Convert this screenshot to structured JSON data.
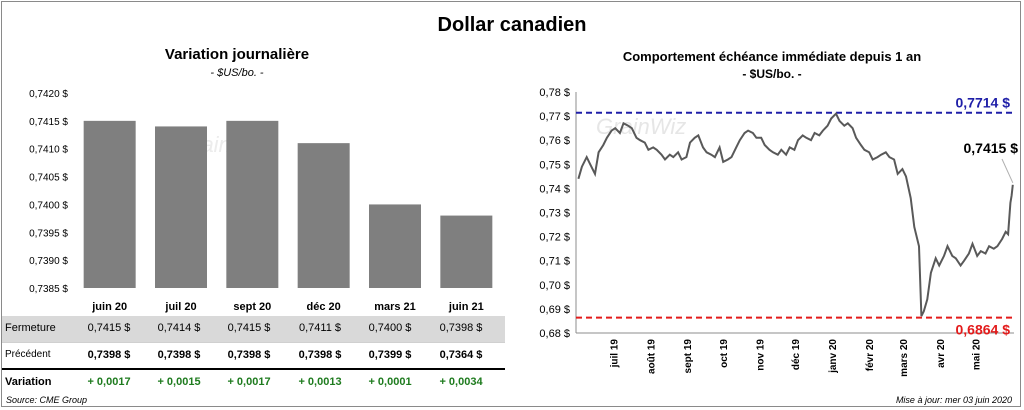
{
  "title": "Dollar canadien",
  "source": "Source: CME Group",
  "updated": "Mise à jour: mer 03 juin 2020",
  "watermark": "GrainWiz",
  "colors": {
    "bar": "#7f7f7f",
    "line": "#595959",
    "high": "#1f1fa8",
    "low": "#e31b1b",
    "variation": "#1e7b1e"
  },
  "table": {
    "rows": [
      {
        "label": "Fermeture",
        "values": [
          "0,7415  $",
          "0,7414  $",
          "0,7415  $",
          "0,7411  $",
          "0,7400  $",
          "0,7398  $"
        ]
      },
      {
        "label": "Précédent",
        "values": [
          "0,7398  $",
          "0,7398  $",
          "0,7398  $",
          "0,7398  $",
          "0,7399  $",
          "0,7364  $"
        ]
      },
      {
        "label": "Variation",
        "values": [
          "+ 0,0017",
          "+ 0,0015",
          "+ 0,0017",
          "+ 0,0013",
          "+ 0,0001",
          "+ 0,0034"
        ]
      }
    ]
  },
  "chart_data": [
    {
      "type": "bar",
      "title": "Variation  journalière",
      "subtitle": "- $US/bo. -",
      "categories": [
        "juin 20",
        "juil 20",
        "sept 20",
        "déc 20",
        "mars 21",
        "juin 21"
      ],
      "values": [
        0.7415,
        0.7414,
        0.7415,
        0.7411,
        0.74,
        0.7398
      ],
      "ylim": [
        0.7385,
        0.742
      ],
      "yticks": [
        "0,7385 $",
        "0,7390 $",
        "0,7395 $",
        "0,7400 $",
        "0,7405 $",
        "0,7410 $",
        "0,7415 $",
        "0,7420 $"
      ],
      "grid": false
    },
    {
      "type": "line",
      "title": "Comportement échéance immédiate depuis 1 an",
      "subtitle": "- $US/bo. -",
      "ylim": [
        0.68,
        0.78
      ],
      "yticks": [
        "0,68 $",
        "0,69 $",
        "0,70 $",
        "0,71 $",
        "0,72 $",
        "0,73 $",
        "0,74 $",
        "0,75 $",
        "0,76 $",
        "0,77 $",
        "0,78 $"
      ],
      "xticks": [
        "juil 19",
        "août 19",
        "sept 19",
        "oct 19",
        "nov 19",
        "déc 19",
        "janv 20",
        "févr 20",
        "mars 20",
        "avr 20",
        "mai 20"
      ],
      "high": {
        "value": 0.7714,
        "label": "0,7714  $"
      },
      "low": {
        "value": 0.6864,
        "label": "0,6864  $"
      },
      "last": {
        "value": 0.7415,
        "label": "0,7415 $"
      },
      "series": [
        {
          "points": [
            [
              "2019-06-03",
              0.744
            ],
            [
              "2019-06-06",
              0.749
            ],
            [
              "2019-06-10",
              0.753
            ],
            [
              "2019-06-13",
              0.75
            ],
            [
              "2019-06-17",
              0.746
            ],
            [
              "2019-06-20",
              0.755
            ],
            [
              "2019-06-24",
              0.758
            ],
            [
              "2019-06-27",
              0.761
            ],
            [
              "2019-07-01",
              0.764
            ],
            [
              "2019-07-04",
              0.765
            ],
            [
              "2019-07-08",
              0.763
            ],
            [
              "2019-07-11",
              0.767
            ],
            [
              "2019-07-15",
              0.766
            ],
            [
              "2019-07-18",
              0.765
            ],
            [
              "2019-07-22",
              0.761
            ],
            [
              "2019-07-25",
              0.76
            ],
            [
              "2019-07-29",
              0.759
            ],
            [
              "2019-08-01",
              0.756
            ],
            [
              "2019-08-05",
              0.757
            ],
            [
              "2019-08-08",
              0.756
            ],
            [
              "2019-08-12",
              0.754
            ],
            [
              "2019-08-15",
              0.752
            ],
            [
              "2019-08-19",
              0.754
            ],
            [
              "2019-08-22",
              0.753
            ],
            [
              "2019-08-26",
              0.755
            ],
            [
              "2019-08-29",
              0.752
            ],
            [
              "2019-09-02",
              0.753
            ],
            [
              "2019-09-05",
              0.759
            ],
            [
              "2019-09-09",
              0.761
            ],
            [
              "2019-09-12",
              0.762
            ],
            [
              "2019-09-16",
              0.757
            ],
            [
              "2019-09-19",
              0.755
            ],
            [
              "2019-09-23",
              0.754
            ],
            [
              "2019-09-26",
              0.753
            ],
            [
              "2019-09-30",
              0.757
            ],
            [
              "2019-10-03",
              0.751
            ],
            [
              "2019-10-07",
              0.752
            ],
            [
              "2019-10-10",
              0.753
            ],
            [
              "2019-10-14",
              0.757
            ],
            [
              "2019-10-17",
              0.76
            ],
            [
              "2019-10-21",
              0.763
            ],
            [
              "2019-10-24",
              0.764
            ],
            [
              "2019-10-28",
              0.763
            ],
            [
              "2019-10-31",
              0.761
            ],
            [
              "2019-11-04",
              0.761
            ],
            [
              "2019-11-07",
              0.758
            ],
            [
              "2019-11-11",
              0.756
            ],
            [
              "2019-11-14",
              0.755
            ],
            [
              "2019-11-18",
              0.754
            ],
            [
              "2019-11-21",
              0.756
            ],
            [
              "2019-11-25",
              0.754
            ],
            [
              "2019-11-28",
              0.757
            ],
            [
              "2019-12-02",
              0.756
            ],
            [
              "2019-12-05",
              0.76
            ],
            [
              "2019-12-09",
              0.762
            ],
            [
              "2019-12-12",
              0.761
            ],
            [
              "2019-12-16",
              0.76
            ],
            [
              "2019-12-19",
              0.763
            ],
            [
              "2019-12-23",
              0.762
            ],
            [
              "2019-12-26",
              0.764
            ],
            [
              "2019-12-30",
              0.766
            ],
            [
              "2020-01-02",
              0.769
            ],
            [
              "2020-01-06",
              0.771
            ],
            [
              "2020-01-09",
              0.768
            ],
            [
              "2020-01-13",
              0.766
            ],
            [
              "2020-01-16",
              0.767
            ],
            [
              "2020-01-20",
              0.765
            ],
            [
              "2020-01-23",
              0.761
            ],
            [
              "2020-01-27",
              0.758
            ],
            [
              "2020-01-30",
              0.756
            ],
            [
              "2020-02-03",
              0.755
            ],
            [
              "2020-02-06",
              0.752
            ],
            [
              "2020-02-10",
              0.753
            ],
            [
              "2020-02-13",
              0.754
            ],
            [
              "2020-02-17",
              0.755
            ],
            [
              "2020-02-20",
              0.753
            ],
            [
              "2020-02-24",
              0.752
            ],
            [
              "2020-02-27",
              0.746
            ],
            [
              "2020-03-02",
              0.748
            ],
            [
              "2020-03-05",
              0.745
            ],
            [
              "2020-03-09",
              0.736
            ],
            [
              "2020-03-12",
              0.724
            ],
            [
              "2020-03-16",
              0.716
            ],
            [
              "2020-03-18",
              0.687
            ],
            [
              "2020-03-20",
              0.689
            ],
            [
              "2020-03-23",
              0.694
            ],
            [
              "2020-03-26",
              0.705
            ],
            [
              "2020-03-30",
              0.711
            ],
            [
              "2020-04-02",
              0.708
            ],
            [
              "2020-04-06",
              0.712
            ],
            [
              "2020-04-09",
              0.716
            ],
            [
              "2020-04-13",
              0.712
            ],
            [
              "2020-04-16",
              0.711
            ],
            [
              "2020-04-20",
              0.708
            ],
            [
              "2020-04-23",
              0.71
            ],
            [
              "2020-04-27",
              0.713
            ],
            [
              "2020-04-30",
              0.717
            ],
            [
              "2020-05-04",
              0.712
            ],
            [
              "2020-05-07",
              0.714
            ],
            [
              "2020-05-11",
              0.713
            ],
            [
              "2020-05-14",
              0.716
            ],
            [
              "2020-05-18",
              0.715
            ],
            [
              "2020-05-21",
              0.716
            ],
            [
              "2020-05-25",
              0.719
            ],
            [
              "2020-05-28",
              0.722
            ],
            [
              "2020-05-30",
              0.721
            ],
            [
              "2020-06-01",
              0.734
            ],
            [
              "2020-06-02",
              0.737
            ],
            [
              "2020-06-03",
              0.7415
            ]
          ]
        }
      ]
    }
  ]
}
